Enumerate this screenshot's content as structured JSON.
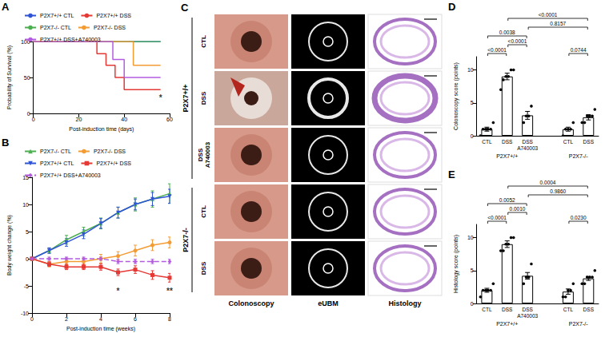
{
  "chart_data": [
    {
      "panel": "A",
      "type": "step",
      "x_label": "Post-induction time (days)",
      "y_label": "Probability of Survival (%)",
      "xlim": [
        0,
        60
      ],
      "xticks": [
        0,
        20,
        40,
        60
      ],
      "ylim": [
        0,
        100
      ],
      "yticks": [
        0,
        50,
        100
      ],
      "grid": false,
      "legend": "top",
      "series": [
        {
          "name": "P2X7+/+ CTL",
          "color": "#2f54d6",
          "line_style": "solid",
          "x": [
            0,
            56
          ],
          "values": [
            100,
            100
          ]
        },
        {
          "name": "P2X7+/+ DSS",
          "color": "#e53935",
          "line_style": "solid",
          "x": [
            0,
            28,
            32,
            36,
            40,
            56
          ],
          "values": [
            100,
            83,
            67,
            50,
            33,
            33
          ]
        },
        {
          "name": "P2X7-/- CTL",
          "color": "#4caf50",
          "line_style": "solid",
          "x": [
            0,
            56
          ],
          "values": [
            100,
            100
          ]
        },
        {
          "name": "P2X7-/- DSS",
          "color": "#f39c34",
          "line_style": "solid",
          "x": [
            0,
            44,
            56
          ],
          "values": [
            100,
            67,
            67
          ]
        },
        {
          "name": "P2X7+/+ DSS+A740003",
          "color": "#b35ce0",
          "line_style": "solid",
          "x": [
            0,
            35,
            40,
            56
          ],
          "values": [
            100,
            75,
            50,
            50
          ]
        }
      ],
      "annotations": [
        {
          "x": 56,
          "y": 22,
          "text": "*"
        }
      ]
    },
    {
      "panel": "B",
      "type": "line",
      "x_label": "Post-induction time (weeks)",
      "y_label": "Body weight change (%)",
      "xlim": [
        0,
        8
      ],
      "xticks": [
        0,
        2,
        4,
        6,
        8
      ],
      "ylim": [
        -10,
        15
      ],
      "yticks": [
        -10,
        -5,
        0,
        5,
        10,
        15
      ],
      "grid": false,
      "legend": "top",
      "series": [
        {
          "name": "P2X7-/- CTL",
          "color": "#4caf50",
          "marker": "triangle",
          "line_style": "solid",
          "x": [
            0,
            1,
            2,
            3,
            4,
            5,
            6,
            7,
            8
          ],
          "values": [
            0,
            1.5,
            3.5,
            5,
            6.5,
            8.5,
            10,
            11,
            12
          ],
          "errors": [
            0,
            0.5,
            0.8,
            0.8,
            1,
            1,
            1.2,
            1.5,
            1.8
          ]
        },
        {
          "name": "P2X7-/- DSS",
          "color": "#f39c34",
          "marker": "circle",
          "line_style": "solid",
          "x": [
            0,
            1,
            2,
            3,
            4,
            5,
            6,
            7,
            8
          ],
          "values": [
            0,
            -1,
            -0.5,
            -0.5,
            0,
            0.5,
            1.5,
            2.5,
            3
          ],
          "errors": [
            0,
            0.5,
            0.6,
            0.6,
            0.8,
            0.8,
            1,
            1,
            1
          ]
        },
        {
          "name": "P2X7+/+ CTL",
          "color": "#2f54d6",
          "marker": "triangle_down",
          "line_style": "solid",
          "x": [
            0,
            1,
            2,
            3,
            4,
            5,
            6,
            7,
            8
          ],
          "values": [
            0,
            1.5,
            3,
            4.5,
            6.5,
            8.5,
            10,
            11,
            11.5
          ],
          "errors": [
            0,
            0.5,
            0.7,
            0.8,
            0.9,
            1,
            1,
            1.2,
            1.3
          ]
        },
        {
          "name": "P2X7+/+ DSS",
          "color": "#e53935",
          "marker": "square",
          "line_style": "solid",
          "x": [
            0,
            1,
            2,
            3,
            4,
            5,
            6,
            7,
            8
          ],
          "values": [
            0,
            -1,
            -1.5,
            -1.5,
            -1.5,
            -2.5,
            -2,
            -3,
            -3.5
          ],
          "errors": [
            0,
            0.4,
            0.5,
            0.5,
            0.6,
            0.6,
            0.7,
            0.8,
            0.8
          ]
        },
        {
          "name": "P2X7+/+ DSS+A740003",
          "color": "#b35ce0",
          "marker": "diamond",
          "line_style": "dashed",
          "x": [
            0,
            1,
            2,
            3,
            4,
            5,
            6,
            7,
            8
          ],
          "values": [
            0,
            0,
            0,
            0,
            0,
            -0.5,
            -0.5,
            -0.5,
            -0.5
          ],
          "errors": [
            0,
            0.3,
            0.3,
            0.3,
            0.3,
            0.4,
            0.4,
            0.4,
            0.4
          ]
        }
      ],
      "annotations": [
        {
          "x": 5,
          "y": -6,
          "text": "*"
        },
        {
          "x": 8,
          "y": -6,
          "text": "**"
        }
      ]
    },
    {
      "panel": "D",
      "type": "bar",
      "y_label": "Colonoscopy score (points)",
      "color": "#000000",
      "grid": false,
      "categories": [
        "CTL",
        "DSS",
        "DSS A740003",
        null,
        "CTL",
        "DSS"
      ],
      "values": [
        1,
        9,
        3.1,
        null,
        1,
        2.8
      ],
      "errors": [
        0.3,
        0.5,
        0.6,
        null,
        0.3,
        0.4
      ],
      "points": [
        [
          0,
          1,
          1,
          1,
          1,
          2
        ],
        [
          7,
          8.5,
          9,
          9,
          10,
          10
        ],
        [
          2,
          3,
          3,
          4.5
        ],
        null,
        [
          0,
          1,
          1,
          1,
          2
        ],
        [
          2,
          2,
          3,
          3,
          3,
          4
        ]
      ],
      "ylim": [
        0,
        12
      ],
      "yticks": [
        0,
        5,
        10
      ],
      "groups": [
        {
          "label": "P2X7+/+",
          "from": 0,
          "to": 2
        },
        {
          "label": "P2X7-/-",
          "from": 4,
          "to": 5
        }
      ],
      "comparisons": [
        {
          "from": 0,
          "to": 1,
          "label": "<0.0001"
        },
        {
          "from": 1,
          "to": 2,
          "label": "<0.0001"
        },
        {
          "from": 4,
          "to": 5,
          "label": "0.0744"
        },
        {
          "from": 0,
          "to": 2,
          "label": "0.0038"
        },
        {
          "from": 2,
          "to": 5,
          "label": "0.8157"
        },
        {
          "from": 1,
          "to": 5,
          "label": "<0.0001"
        }
      ]
    },
    {
      "panel": "E",
      "type": "bar",
      "y_label": "Histology score (points)",
      "color": "#000000",
      "grid": false,
      "categories": [
        "CTL",
        "DSS",
        "DSS A740003",
        null,
        "CTL",
        "DSS"
      ],
      "values": [
        2,
        9,
        4.2,
        null,
        1.8,
        3.8
      ],
      "errors": [
        0.3,
        0.5,
        0.5,
        null,
        0.4,
        0.3
      ],
      "points": [
        [
          1,
          2,
          2,
          2,
          2,
          3
        ],
        [
          8,
          8,
          9,
          9,
          10,
          10
        ],
        [
          3,
          4,
          4,
          6
        ],
        null,
        [
          1,
          1,
          2,
          2,
          3
        ],
        [
          3,
          3,
          4,
          4,
          4,
          5
        ]
      ],
      "ylim": [
        0,
        12
      ],
      "yticks": [
        0,
        5,
        10
      ],
      "groups": [
        {
          "label": "P2X7+/+",
          "from": 0,
          "to": 2
        },
        {
          "label": "P2X7-/-",
          "from": 4,
          "to": 5
        }
      ],
      "comparisons": [
        {
          "from": 0,
          "to": 1,
          "label": "<0.0001"
        },
        {
          "from": 1,
          "to": 2,
          "label": "0.0010"
        },
        {
          "from": 4,
          "to": 5,
          "label": "0.0230"
        },
        {
          "from": 0,
          "to": 2,
          "label": "0.0052"
        },
        {
          "from": 2,
          "to": 5,
          "label": "0.9860"
        },
        {
          "from": 1,
          "to": 5,
          "label": "0.0004"
        }
      ]
    }
  ],
  "image_panel": {
    "panel": "C",
    "groups": [
      {
        "label": "P2X7+/+",
        "rows": [
          "CTL",
          "DSS",
          "DSS A740003"
        ]
      },
      {
        "label": "P2X7-/-",
        "rows": [
          "CTL",
          "DSS"
        ]
      }
    ],
    "columns": [
      "Colonoscopy",
      "eUBM",
      "Histology"
    ]
  }
}
